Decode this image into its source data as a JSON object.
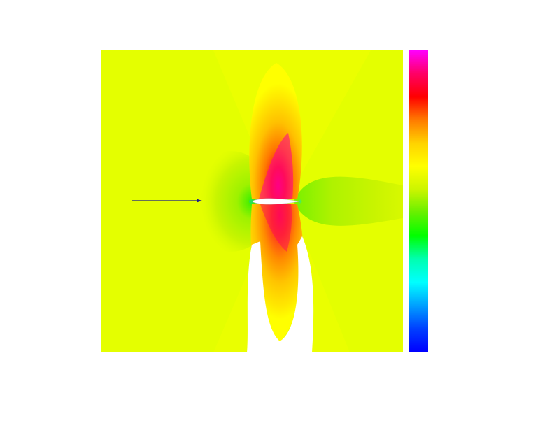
{
  "figure": {
    "colors": {
      "background": "#e4ff00",
      "halo": "#ccf500",
      "wake": "#b8ee00",
      "hole": "#ffffff",
      "arrow": "#1a1a8c",
      "airfoil": "#ffffff"
    },
    "colorbar": {
      "stops": [
        "#ff00ff",
        "#ff0066",
        "#ff0000",
        "#ff7a00",
        "#ffd200",
        "#ffff00",
        "#ccf500",
        "#66f000",
        "#00ff00",
        "#00ffb0",
        "#00ffff",
        "#00a0ff",
        "#0040ff",
        "#0000ff"
      ]
    }
  }
}
